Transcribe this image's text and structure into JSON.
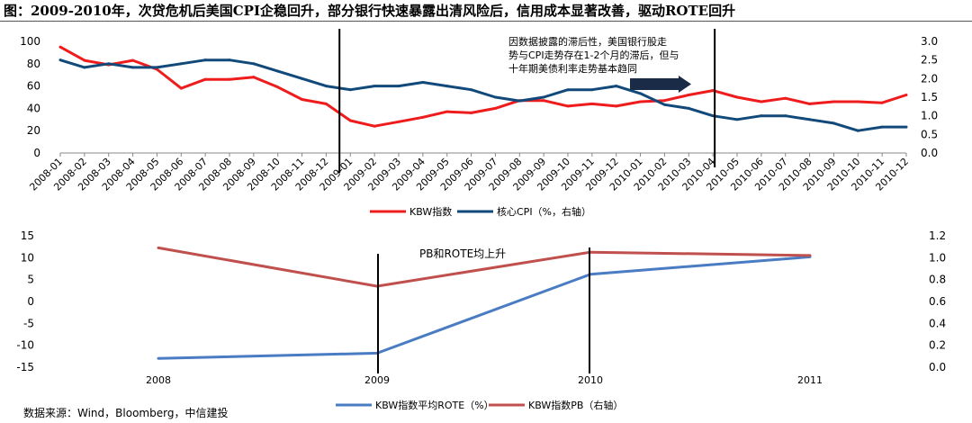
{
  "figure_title": "图：2009-2010年，次贷危机后美国CPI企稳回升，部分银行快速暴露出清风险后，信用成本显著改善，驱动ROTE回升",
  "source_note": "数据来源：Wind，Bloomberg，中信建投",
  "colors": {
    "red": "#ee1c1c",
    "navy": "#114a7a",
    "blue": "#4a7cc4",
    "brick": "#c0504d"
  },
  "chart_data": [
    {
      "type": "line",
      "categories": [
        "2008-01",
        "2008-02",
        "2008-03",
        "2008-04",
        "2008-05",
        "2008-06",
        "2008-07",
        "2008-08",
        "2008-09",
        "2008-10",
        "2008-11",
        "2008-12",
        "2009-01",
        "2009-02",
        "2009-03",
        "2009-04",
        "2009-05",
        "2009-06",
        "2009-07",
        "2009-08",
        "2009-09",
        "2009-10",
        "2009-11",
        "2009-12",
        "2010-01",
        "2010-02",
        "2010-03",
        "2010-04",
        "2010-05",
        "2010-06",
        "2010-07",
        "2010-08",
        "2010-09",
        "2010-10",
        "2010-11",
        "2010-12"
      ],
      "series": [
        {
          "name": "KBW指数",
          "axis": "left",
          "color": "#ee1c1c",
          "values": [
            95,
            83,
            79,
            83,
            75,
            58,
            66,
            66,
            68,
            59,
            48,
            44,
            29,
            24,
            28,
            32,
            37,
            36,
            40,
            47,
            47,
            42,
            44,
            42,
            46,
            47,
            52,
            56,
            50,
            46,
            49,
            44,
            46,
            46,
            45,
            52
          ]
        },
        {
          "name": "核心CPI（%，右轴）",
          "axis": "right",
          "color": "#114a7a",
          "values": [
            2.5,
            2.3,
            2.4,
            2.3,
            2.3,
            2.4,
            2.5,
            2.5,
            2.4,
            2.2,
            2.0,
            1.8,
            1.7,
            1.8,
            1.8,
            1.9,
            1.8,
            1.7,
            1.5,
            1.4,
            1.5,
            1.7,
            1.7,
            1.8,
            1.6,
            1.3,
            1.2,
            1.0,
            0.9,
            1.0,
            1.0,
            0.9,
            0.8,
            0.6,
            0.7,
            0.7
          ]
        }
      ],
      "y_left": {
        "min": 0,
        "max": 100,
        "ticks": [
          0,
          20,
          40,
          60,
          80,
          100
        ],
        "labels": [
          "0",
          "20",
          "40",
          "60",
          "80",
          "100"
        ]
      },
      "y_right": {
        "min": 0,
        "max": 3.0,
        "ticks": [
          0,
          0.5,
          1.0,
          1.5,
          2.0,
          2.5,
          3.0
        ],
        "labels": [
          "0.0",
          "0.5",
          "1.0",
          "1.5",
          "2.0",
          "2.5",
          "3.0"
        ]
      },
      "markers": [
        {
          "after_category": "2008-12"
        },
        {
          "at_category": "2010-04"
        }
      ],
      "annotation": {
        "lines": [
          "因数据披露的滞后性，美国银行股走",
          "势与CPI走势存在1-2个月的滞后，但与",
          "十年期美债利率走势基本趋同"
        ],
        "arrow_direction": "right"
      },
      "legend": [
        "KBW指数",
        "核心CPI（%，右轴）"
      ]
    },
    {
      "type": "line",
      "categories": [
        "2008",
        "2009",
        "2010",
        "2011"
      ],
      "series": [
        {
          "name": "KBW指数平均ROTE（%）",
          "axis": "left",
          "color": "#4a7cc4",
          "values": [
            -13.0,
            -11.8,
            6.2,
            10.2
          ]
        },
        {
          "name": "KBW指数PB（右轴）",
          "axis": "right",
          "color": "#c0504d",
          "values": [
            1.09,
            0.74,
            1.05,
            1.02
          ]
        }
      ],
      "y_left": {
        "min": -15,
        "max": 15,
        "ticks": [
          -15,
          -10,
          -5,
          0,
          5,
          10,
          15
        ],
        "labels": [
          "-15",
          "-10",
          "-5",
          "0",
          "5",
          "10",
          "15"
        ]
      },
      "y_right": {
        "min": 0,
        "max": 1.2,
        "ticks": [
          0,
          0.2,
          0.4,
          0.6,
          0.8,
          1.0,
          1.2
        ],
        "labels": [
          "0.0",
          "0.2",
          "0.4",
          "0.6",
          "0.8",
          "1.0",
          "1.2"
        ]
      },
      "markers": [
        {
          "at_category": "2009"
        },
        {
          "at_category": "2010"
        }
      ],
      "annotation": {
        "lines": [
          "PB和ROTE均上升"
        ]
      },
      "legend": [
        "KBW指数平均ROTE（%）",
        "KBW指数PB（右轴）"
      ]
    }
  ]
}
